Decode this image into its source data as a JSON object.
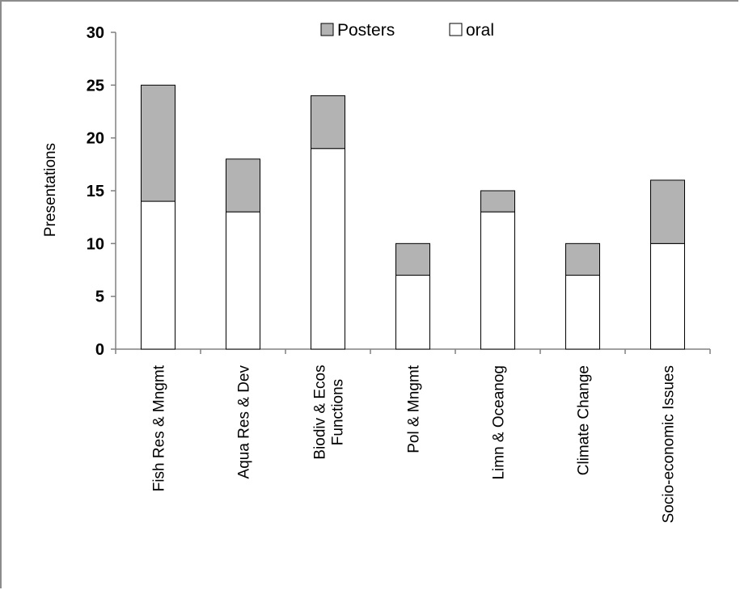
{
  "chart_data": {
    "type": "bar",
    "stacked": true,
    "categories": [
      [
        "Fish Res & Mngmt"
      ],
      [
        "Aqua Res & Dev"
      ],
      [
        "Biodiv & Ecos",
        "Functions"
      ],
      [
        "Pol & Mngmt"
      ],
      [
        "Limn & Oceanog"
      ],
      [
        "Climate Change"
      ],
      [
        "Socio-economic Issues"
      ]
    ],
    "series": [
      {
        "name": "oral",
        "values": [
          14,
          13,
          19,
          7,
          13,
          7,
          10
        ],
        "color": "#ffffff"
      },
      {
        "name": "Posters",
        "values": [
          11,
          5,
          5,
          3,
          2,
          3,
          6
        ],
        "color": "#b3b3b3"
      }
    ],
    "title": "",
    "xlabel": "",
    "ylabel": "Presentations",
    "ylim": [
      0,
      30
    ],
    "yticks": [
      0,
      5,
      10,
      15,
      20,
      25,
      30
    ],
    "legend": {
      "placement": "top-center",
      "entries": [
        "Posters",
        "oral"
      ]
    },
    "grid": false
  }
}
